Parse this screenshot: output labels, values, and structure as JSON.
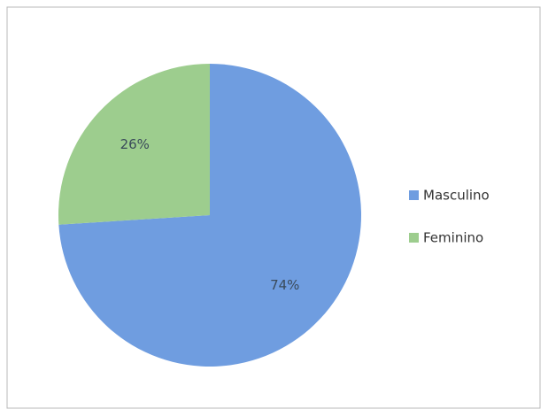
{
  "chart_data": {
    "type": "pie",
    "categories": [
      "Masculino",
      "Feminino"
    ],
    "values": [
      74,
      26
    ],
    "value_labels": [
      "74%",
      "26%"
    ],
    "colors": [
      "#6f9de0",
      "#9dcd8e"
    ],
    "legend": "right"
  }
}
